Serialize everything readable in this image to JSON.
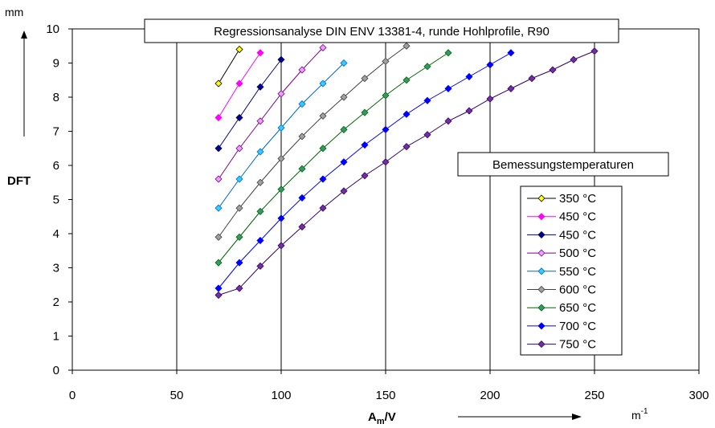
{
  "chart_data": {
    "type": "line",
    "title": "Regressionsanalyse DIN ENV 13381-4, runde Hohlprofile, R90",
    "subtitle_box": "Bemessungstemperaturen",
    "ylabel": "DFT",
    "yunit": "mm",
    "xlabel_main": "A",
    "xlabel_sub": "m",
    "xlabel_tail": "/V",
    "xunit_base": "m",
    "xunit_exp": "-1",
    "xlim": [
      0,
      300
    ],
    "ylim": [
      0,
      10
    ],
    "xticks": [
      "0",
      "50",
      "100",
      "150",
      "200",
      "250",
      "300"
    ],
    "yticks": [
      "0",
      "1",
      "2",
      "3",
      "4",
      "5",
      "6",
      "7",
      "8",
      "9",
      "10"
    ],
    "grid": "vertical",
    "legend_position": "right",
    "series": [
      {
        "name": "350 °C",
        "color": "#000000",
        "fill": "#ffff00",
        "x": [
          70,
          80
        ],
        "y": [
          8.4,
          9.4
        ]
      },
      {
        "name": "450 °C",
        "color": "#ff00ff",
        "fill": "#ff00ff",
        "x": [
          70,
          80,
          90
        ],
        "y": [
          7.4,
          8.4,
          9.3
        ]
      },
      {
        "name": "450 °C",
        "color": "#000080",
        "fill": "#000080",
        "x": [
          70,
          80,
          90,
          100
        ],
        "y": [
          6.5,
          7.4,
          8.3,
          9.1
        ]
      },
      {
        "name": "500 °C",
        "color": "#800080",
        "fill": "#e6a0ff",
        "x": [
          70,
          80,
          90,
          100,
          110,
          120
        ],
        "y": [
          5.6,
          6.5,
          7.3,
          8.1,
          8.8,
          9.45
        ]
      },
      {
        "name": "550 °C",
        "color": "#0066cc",
        "fill": "#33ccff",
        "x": [
          70,
          80,
          90,
          100,
          110,
          120,
          130
        ],
        "y": [
          4.75,
          5.6,
          6.4,
          7.1,
          7.8,
          8.4,
          9.0
        ]
      },
      {
        "name": "600 °C",
        "color": "#404040",
        "fill": "#a0a0a0",
        "x": [
          70,
          80,
          90,
          100,
          110,
          120,
          130,
          140,
          150,
          160
        ],
        "y": [
          3.9,
          4.75,
          5.5,
          6.2,
          6.85,
          7.45,
          8.0,
          8.55,
          9.05,
          9.5
        ]
      },
      {
        "name": "650 °C",
        "color": "#006600",
        "fill": "#339966",
        "x": [
          70,
          80,
          90,
          100,
          110,
          120,
          130,
          140,
          150,
          160,
          170,
          180
        ],
        "y": [
          3.15,
          3.9,
          4.65,
          5.3,
          5.9,
          6.5,
          7.05,
          7.55,
          8.05,
          8.5,
          8.9,
          9.3
        ]
      },
      {
        "name": "700 °C",
        "color": "#0000ff",
        "fill": "#0000ff",
        "x": [
          70,
          80,
          90,
          100,
          110,
          120,
          130,
          140,
          150,
          160,
          170,
          180,
          190,
          200,
          210
        ],
        "y": [
          2.4,
          3.15,
          3.8,
          4.45,
          5.05,
          5.6,
          6.1,
          6.6,
          7.05,
          7.5,
          7.9,
          8.25,
          8.6,
          8.95,
          9.3
        ]
      },
      {
        "name": "750 °C",
        "color": "#330066",
        "fill": "#7030a0",
        "x": [
          70,
          80,
          90,
          100,
          110,
          120,
          130,
          140,
          150,
          160,
          170,
          180,
          190,
          200,
          210,
          220,
          230,
          240,
          250
        ],
        "y": [
          2.2,
          2.4,
          3.05,
          3.65,
          4.2,
          4.75,
          5.25,
          5.7,
          6.1,
          6.55,
          6.9,
          7.3,
          7.6,
          7.95,
          8.25,
          8.55,
          8.8,
          9.1,
          9.35
        ]
      }
    ]
  }
}
